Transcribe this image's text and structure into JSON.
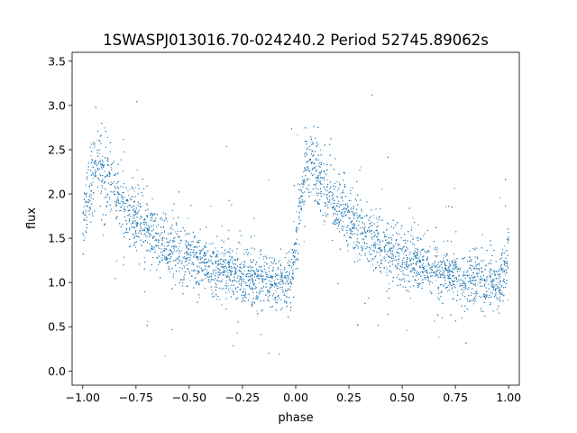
{
  "chart_data": {
    "type": "scatter",
    "title": "1SWASPJ013016.70-024240.2 Period 52745.89062s",
    "xlabel": "phase",
    "ylabel": "flux",
    "xlim": [
      -1.05,
      1.05
    ],
    "ylim": [
      -0.16,
      3.6
    ],
    "x_ticks": [
      -1.0,
      -0.75,
      -0.5,
      -0.25,
      0.0,
      0.25,
      0.5,
      0.75,
      1.0
    ],
    "x_tick_labels": [
      "−1.00",
      "−0.75",
      "−0.50",
      "−0.25",
      "0.00",
      "0.25",
      "0.50",
      "0.75",
      "1.00"
    ],
    "y_ticks": [
      0.0,
      0.5,
      1.0,
      1.5,
      2.0,
      2.5,
      3.0,
      3.5
    ],
    "y_tick_labels": [
      "0.0",
      "0.5",
      "1.0",
      "1.5",
      "2.0",
      "2.5",
      "3.0",
      "3.5"
    ],
    "grid": false,
    "legend": "none",
    "marker_color": "#1f77b4",
    "series": [
      {
        "note_points_are_binned_trend": true,
        "x": [
          -1.0,
          -0.97,
          -0.94,
          -0.9,
          -0.85,
          -0.8,
          -0.75,
          -0.7,
          -0.65,
          -0.6,
          -0.55,
          -0.5,
          -0.45,
          -0.4,
          -0.35,
          -0.3,
          -0.25,
          -0.2,
          -0.15,
          -0.1,
          -0.05,
          -0.02,
          0.0,
          0.03,
          0.06,
          0.1,
          0.15,
          0.2,
          0.25,
          0.3,
          0.35,
          0.4,
          0.45,
          0.5,
          0.55,
          0.6,
          0.65,
          0.7,
          0.75,
          0.8,
          0.85,
          0.9,
          0.95,
          0.98,
          1.0
        ],
        "y": [
          1.65,
          2.0,
          2.35,
          2.2,
          2.0,
          1.85,
          1.72,
          1.6,
          1.5,
          1.42,
          1.35,
          1.28,
          1.23,
          1.18,
          1.14,
          1.1,
          1.07,
          1.04,
          1.02,
          1.0,
          0.98,
          1.05,
          1.5,
          2.0,
          2.35,
          2.2,
          2.0,
          1.85,
          1.72,
          1.6,
          1.5,
          1.42,
          1.35,
          1.28,
          1.23,
          1.18,
          1.14,
          1.1,
          1.07,
          1.04,
          1.02,
          1.0,
          0.98,
          1.05,
          1.5
        ]
      }
    ]
  }
}
